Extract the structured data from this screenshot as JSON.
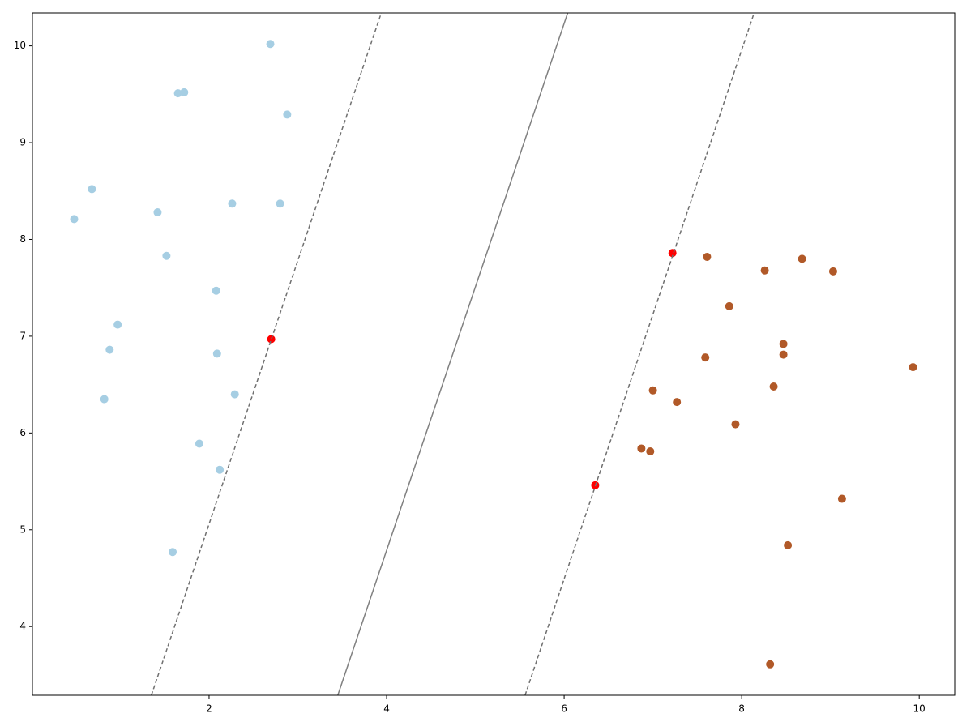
{
  "chart_data": {
    "type": "scatter",
    "xlim": [
      0.01,
      10.4
    ],
    "ylim": [
      3.29,
      10.34
    ],
    "xticks": [
      2,
      4,
      6,
      8,
      10
    ],
    "yticks": [
      4,
      5,
      6,
      7,
      8,
      9,
      10
    ],
    "grid": false,
    "series": [
      {
        "mode": "markers",
        "color": "#a6cee3",
        "x": [
          2.69,
          1.65,
          1.72,
          2.88,
          0.68,
          0.48,
          1.42,
          2.26,
          2.8,
          1.52,
          2.08,
          0.97,
          0.88,
          2.09,
          2.29,
          0.82,
          1.89,
          2.12,
          1.59
        ],
        "values": [
          10.02,
          9.51,
          9.52,
          9.29,
          8.52,
          8.21,
          8.28,
          8.37,
          8.37,
          7.83,
          7.47,
          7.12,
          6.86,
          6.82,
          6.4,
          6.35,
          5.89,
          5.62,
          4.77
        ]
      },
      {
        "mode": "markers",
        "color": "#b15928",
        "x": [
          7.61,
          8.26,
          8.68,
          9.03,
          7.86,
          8.47,
          8.47,
          7.59,
          9.93,
          8.36,
          7.0,
          7.27,
          7.93,
          6.87,
          6.97,
          9.13,
          8.52,
          8.32
        ],
        "values": [
          7.82,
          7.68,
          7.8,
          7.67,
          7.31,
          6.92,
          6.81,
          6.78,
          6.68,
          6.48,
          6.44,
          6.32,
          6.09,
          5.84,
          5.81,
          5.32,
          4.84,
          3.61
        ]
      },
      {
        "mode": "markers",
        "color": "#ff0000",
        "x": [
          2.7,
          7.22,
          6.35
        ],
        "values": [
          6.97,
          7.86,
          5.46
        ]
      },
      {
        "mode": "lines",
        "dash": false,
        "color": "#808080",
        "x": [
          3.45,
          6.04
        ],
        "values": [
          3.29,
          10.34
        ]
      },
      {
        "mode": "lines",
        "dash": true,
        "color": "#707070",
        "x": [
          1.35,
          3.94
        ],
        "values": [
          3.29,
          10.34
        ]
      },
      {
        "mode": "lines",
        "dash": true,
        "color": "#707070",
        "x": [
          5.56,
          8.14
        ],
        "values": [
          3.29,
          10.34
        ]
      }
    ]
  }
}
